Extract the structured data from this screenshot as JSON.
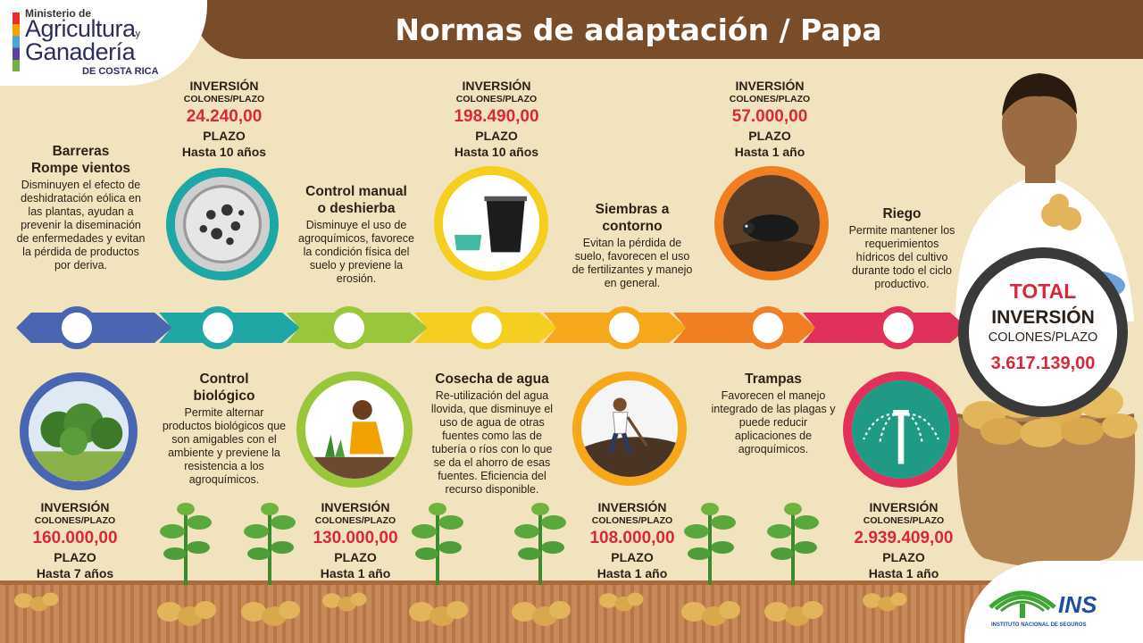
{
  "header": {
    "title": "Normas de adaptación / Papa"
  },
  "logo": {
    "line1": "Ministerio de",
    "line2": "Agricultura",
    "line2_suffix": "y",
    "line3": "Ganadería",
    "line4": "DE COSTA RICA"
  },
  "practices": [
    {
      "title_l1": "Barreras",
      "title_l2": "Rompe vientos",
      "description": "Disminuyen el efecto de deshidratación eólica en las plantas, ayudan a prevenir la diseminación de enfermedades y evitan la pérdida de productos por deriva.",
      "inversion_label": "INVERSIÓN",
      "colones_label": "COLONES/PLAZO",
      "amount": "160.000,00",
      "plazo_label": "PLAZO",
      "plazo": "Hasta 7 años",
      "color": "#4a66b0"
    },
    {
      "title_l1": "Control",
      "title_l2": "biológico",
      "description": "Permite alternar productos biológicos que son amigables con el ambiente y previene la resistencia a los agroquímicos.",
      "inversion_label": "INVERSIÓN",
      "colones_label": "COLONES/PLAZO",
      "amount": "24.240,00",
      "plazo_label": "PLAZO",
      "plazo": "Hasta 10 años",
      "color": "#1fa7a6"
    },
    {
      "title_l1": "Control manual",
      "title_l2": "o deshierba",
      "description": "Disminuye el uso de agroquímicos, favorece la condición física del suelo y previene la erosión.",
      "inversion_label": "INVERSIÓN",
      "colones_label": "COLONES/PLAZO",
      "amount": "130.000,00",
      "plazo_label": "PLAZO",
      "plazo": "Hasta 1 año",
      "color": "#9ac63b"
    },
    {
      "title_l1": "Cosecha de agua",
      "title_l2": "",
      "description": "Re-utilización del agua llovida, que disminuye el uso de agua de otras fuentes como las de tubería o ríos con lo que se da el ahorro de esas fuentes. Eficiencia del recurso disponible.",
      "inversion_label": "INVERSIÓN",
      "colones_label": "COLONES/PLAZO",
      "amount": "198.490,00",
      "plazo_label": "PLAZO",
      "plazo": "Hasta 10 años",
      "color": "#f5cf1f"
    },
    {
      "title_l1": "Siembras a",
      "title_l2": "contorno",
      "description": "Evitan la pérdida de suelo, favorecen el uso de fertilizantes y manejo en general.",
      "inversion_label": "INVERSIÓN",
      "colones_label": "COLONES/PLAZO",
      "amount": "108.000,00",
      "plazo_label": "PLAZO",
      "plazo": "Hasta 1 año",
      "color": "#f5a81c"
    },
    {
      "title_l1": "Trampas",
      "title_l2": "",
      "description": "Favorecen el manejo integrado de las plagas y puede reducir aplicaciones de agroquímicos.",
      "inversion_label": "INVERSIÓN",
      "colones_label": "COLONES/PLAZO",
      "amount": "57.000,00",
      "plazo_label": "PLAZO",
      "plazo": "Hasta 1 año",
      "color": "#ef7f22"
    },
    {
      "title_l1": "Riego",
      "title_l2": "",
      "description": "Permite mantener los requerimientos hídricos del cultivo durante todo el ciclo productivo.",
      "inversion_label": "INVERSIÓN",
      "colones_label": "COLONES/PLAZO",
      "amount": "2.939.409,00",
      "plazo_label": "PLAZO",
      "plazo": "Hasta 1 año",
      "color": "#e1305a"
    }
  ],
  "total": {
    "label": "TOTAL",
    "inversion": "INVERSIÓN",
    "colones": "COLONES/PLAZO",
    "amount": "3.617.139,00"
  },
  "footer": {
    "ins": "INS",
    "ins_sub": "INSTITUTO NACIONAL DE SEGUROS"
  },
  "icons": [
    "tree-photo-icon",
    "petri-dish-icon",
    "weeding-photo-icon",
    "water-bucket-icon",
    "hoeing-photo-icon",
    "mole-trap-icon",
    "sprinkler-icon",
    "potato-plant-icon",
    "farmer-icon",
    "ins-logo-icon"
  ]
}
